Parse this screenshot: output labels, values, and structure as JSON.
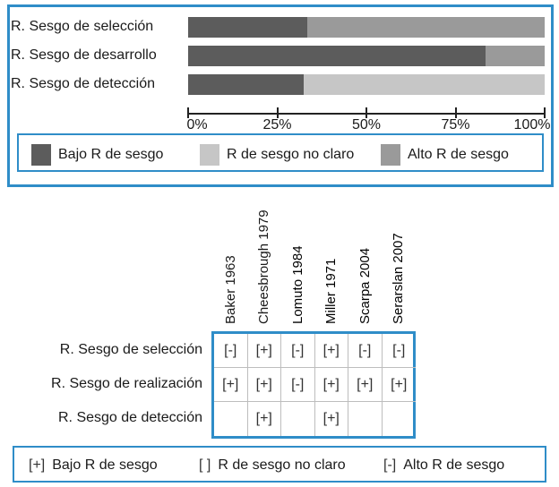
{
  "chart_data": [
    {
      "type": "bar",
      "orientation": "horizontal",
      "stacked": true,
      "categories": [
        "R. Sesgo de selección",
        "R. Sesgo de desarrollo",
        "R. Sesgo de detección"
      ],
      "series": [
        {
          "name": "Bajo R de sesgo",
          "color": "#5c5c5c",
          "values": [
            33.5,
            83.5,
            32.5
          ]
        },
        {
          "name": "R de sesgo no claro",
          "color": "#c6c6c6",
          "values": [
            0,
            0,
            67.5
          ]
        },
        {
          "name": "Alto R de sesgo",
          "color": "#9a9a9a",
          "values": [
            66.5,
            16.5,
            0
          ]
        }
      ],
      "xlim": [
        0,
        100
      ],
      "x_ticks": [
        "0%",
        "25%",
        "50%",
        "75%",
        "100%"
      ],
      "x_tick_values": [
        0,
        25,
        50,
        75,
        100
      ],
      "legend_position": "bottom"
    },
    {
      "type": "table",
      "columns": [
        "Baker 1963",
        "Cheesbrough 1979",
        "Lomuto 1984",
        "Miller 1971",
        "Scarpa 2004",
        "Serarslan 2007"
      ],
      "rows": [
        {
          "label": "R. Sesgo de selección",
          "values": [
            "[-]",
            "[+]",
            "[-]",
            "[+]",
            "[-]",
            "[-]"
          ]
        },
        {
          "label": "R. Sesgo de realización",
          "values": [
            "[+]",
            "[+]",
            "[-]",
            "[+]",
            "[+]",
            "[+]"
          ]
        },
        {
          "label": "R. Sesgo de detección",
          "values": [
            "",
            "[+]",
            "",
            "[+]",
            "",
            ""
          ]
        }
      ],
      "legend": [
        {
          "symbol": "[+]",
          "label": "Bajo R de sesgo"
        },
        {
          "symbol": "[ ]",
          "label": "R de sesgo no claro"
        },
        {
          "symbol": "[-]",
          "label": "Alto R de sesgo"
        }
      ]
    }
  ]
}
